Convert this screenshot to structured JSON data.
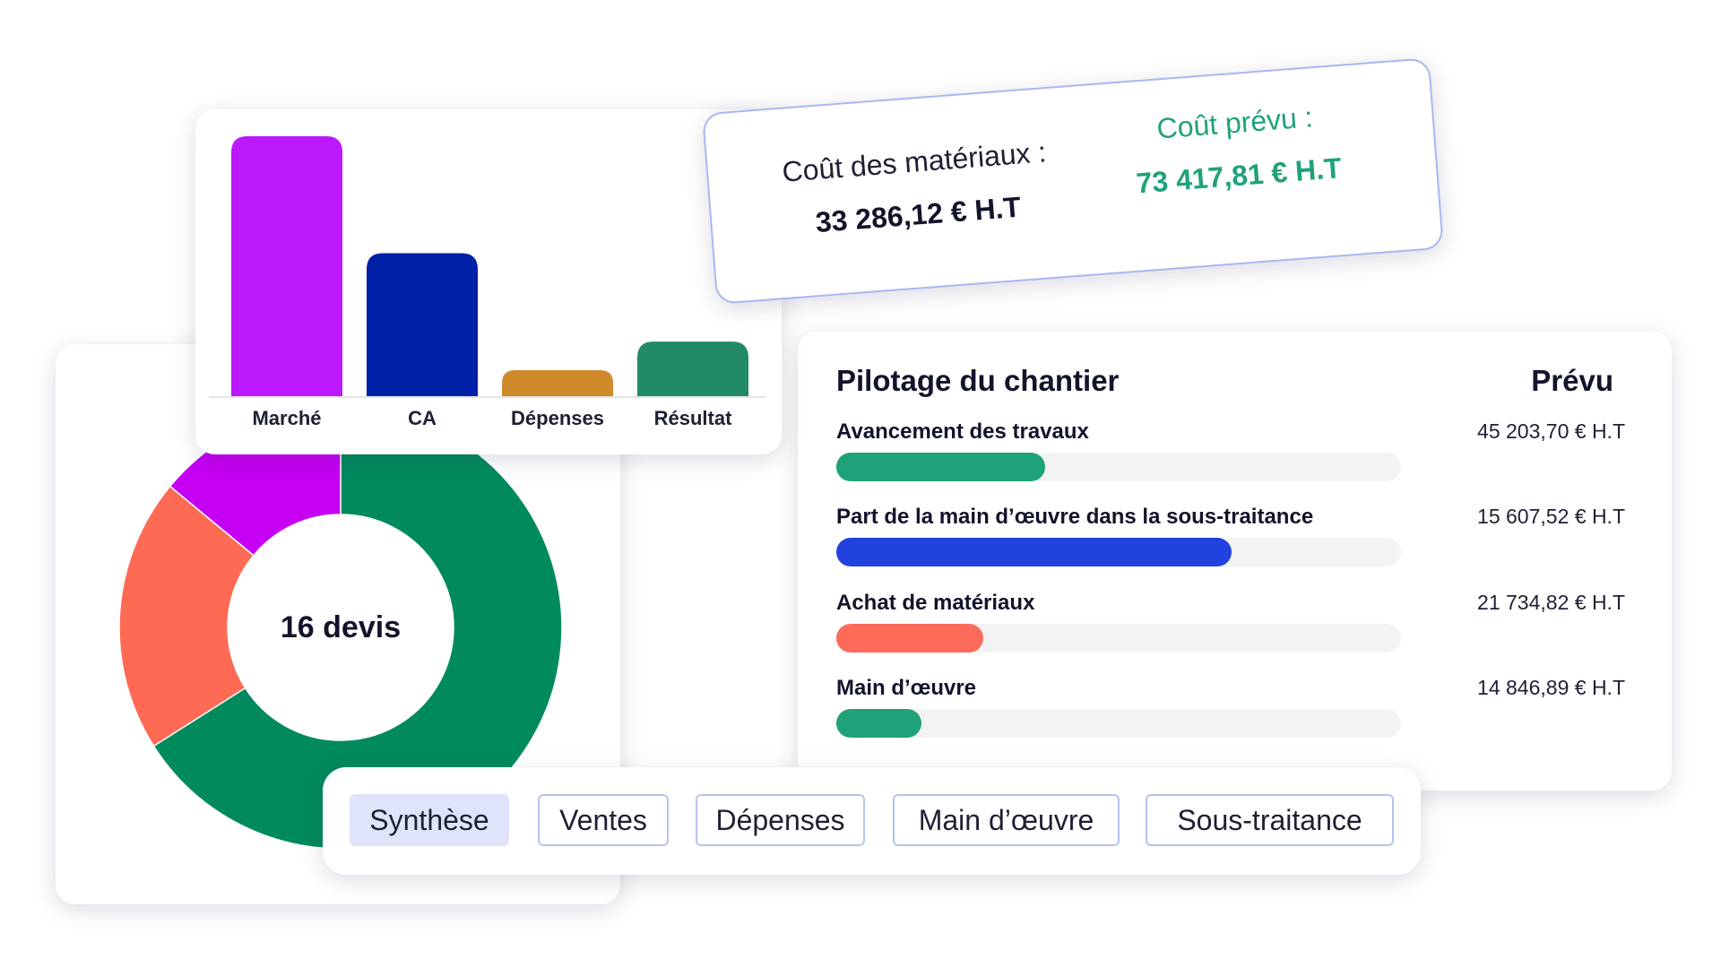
{
  "bar_chart": {
    "chart_data": {
      "type": "bar",
      "categories": [
        "Marché",
        "CA",
        "Dépenses",
        "Résultat"
      ],
      "values": [
        100,
        55,
        10,
        21
      ],
      "colors": [
        "#bb19fb",
        "#0020a8",
        "#d08a2b",
        "#238a66"
      ],
      "ylim": [
        0,
        100
      ]
    }
  },
  "donut_chart": {
    "chart_data": {
      "type": "pie",
      "slices": [
        {
          "value": 66,
          "color": "#008a5e"
        },
        {
          "value": 20,
          "color": "#ff6a55"
        },
        {
          "value": 14,
          "color": "#c600f3"
        }
      ]
    },
    "center_label": "16 devis"
  },
  "cost_card": {
    "materials_label": "Coût des matériaux :",
    "materials_value": "33 286,12 € H.T",
    "planned_label": "Coût prévu :",
    "planned_value": "73 417,81 € H.T"
  },
  "pilotage": {
    "title": "Pilotage du chantier",
    "planned_header": "Prévu",
    "tasks": [
      {
        "name": "Avancement des travaux",
        "amount": "45 203,70 € H.T",
        "progress": 0.37,
        "color": "#1fa27a"
      },
      {
        "name": "Part de la main d’œuvre dans la sous-traitance",
        "amount": "15 607,52 € H.T",
        "progress": 0.7,
        "color": "#2142dd"
      },
      {
        "name": "Achat de matériaux",
        "amount": "21 734,82 € H.T",
        "progress": 0.26,
        "color": "#ff6b5a"
      },
      {
        "name": "Main d’œuvre",
        "amount": "14 846,89 € H.T",
        "progress": 0.15,
        "color": "#1fa27a"
      }
    ]
  },
  "tabs": [
    {
      "label": "Synthèse",
      "active": true
    },
    {
      "label": "Ventes",
      "active": false
    },
    {
      "label": "Dépenses",
      "active": false
    },
    {
      "label": "Main d’œuvre",
      "active": false
    },
    {
      "label": "Sous-traitance",
      "active": false
    }
  ]
}
